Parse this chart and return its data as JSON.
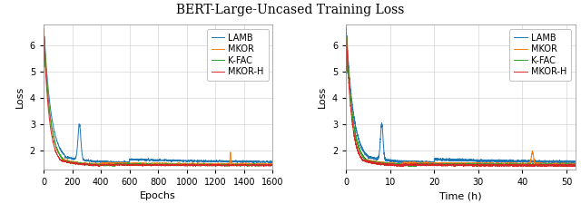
{
  "title": "BERT-Large-Uncased Training Loss",
  "title_fontsize": 10,
  "series": [
    "LAMB",
    "MKOR",
    "K-FAC",
    "MKOR-H"
  ],
  "colors": [
    "#1f77b4",
    "#ff7f0e",
    "#2ca02c",
    "#d62728"
  ],
  "linewidth": 0.7,
  "ylabel": "Loss",
  "xlabel_left": "Epochs",
  "xlabel_right": "Time (h)",
  "ylim": [
    1.3,
    6.8
  ],
  "xlim_epochs": [
    0,
    1600
  ],
  "xlim_time": [
    0,
    52
  ],
  "xticks_epochs": [
    0,
    200,
    400,
    600,
    800,
    1000,
    1200,
    1400,
    1600
  ],
  "xticks_time": [
    0,
    10,
    20,
    30,
    40,
    50
  ],
  "yticks": [
    2,
    3,
    4,
    5,
    6
  ],
  "grid_color": "#cccccc",
  "bg_color": "#ffffff",
  "legend_fontsize": 7,
  "axis_fontsize": 8,
  "tick_fontsize": 7
}
